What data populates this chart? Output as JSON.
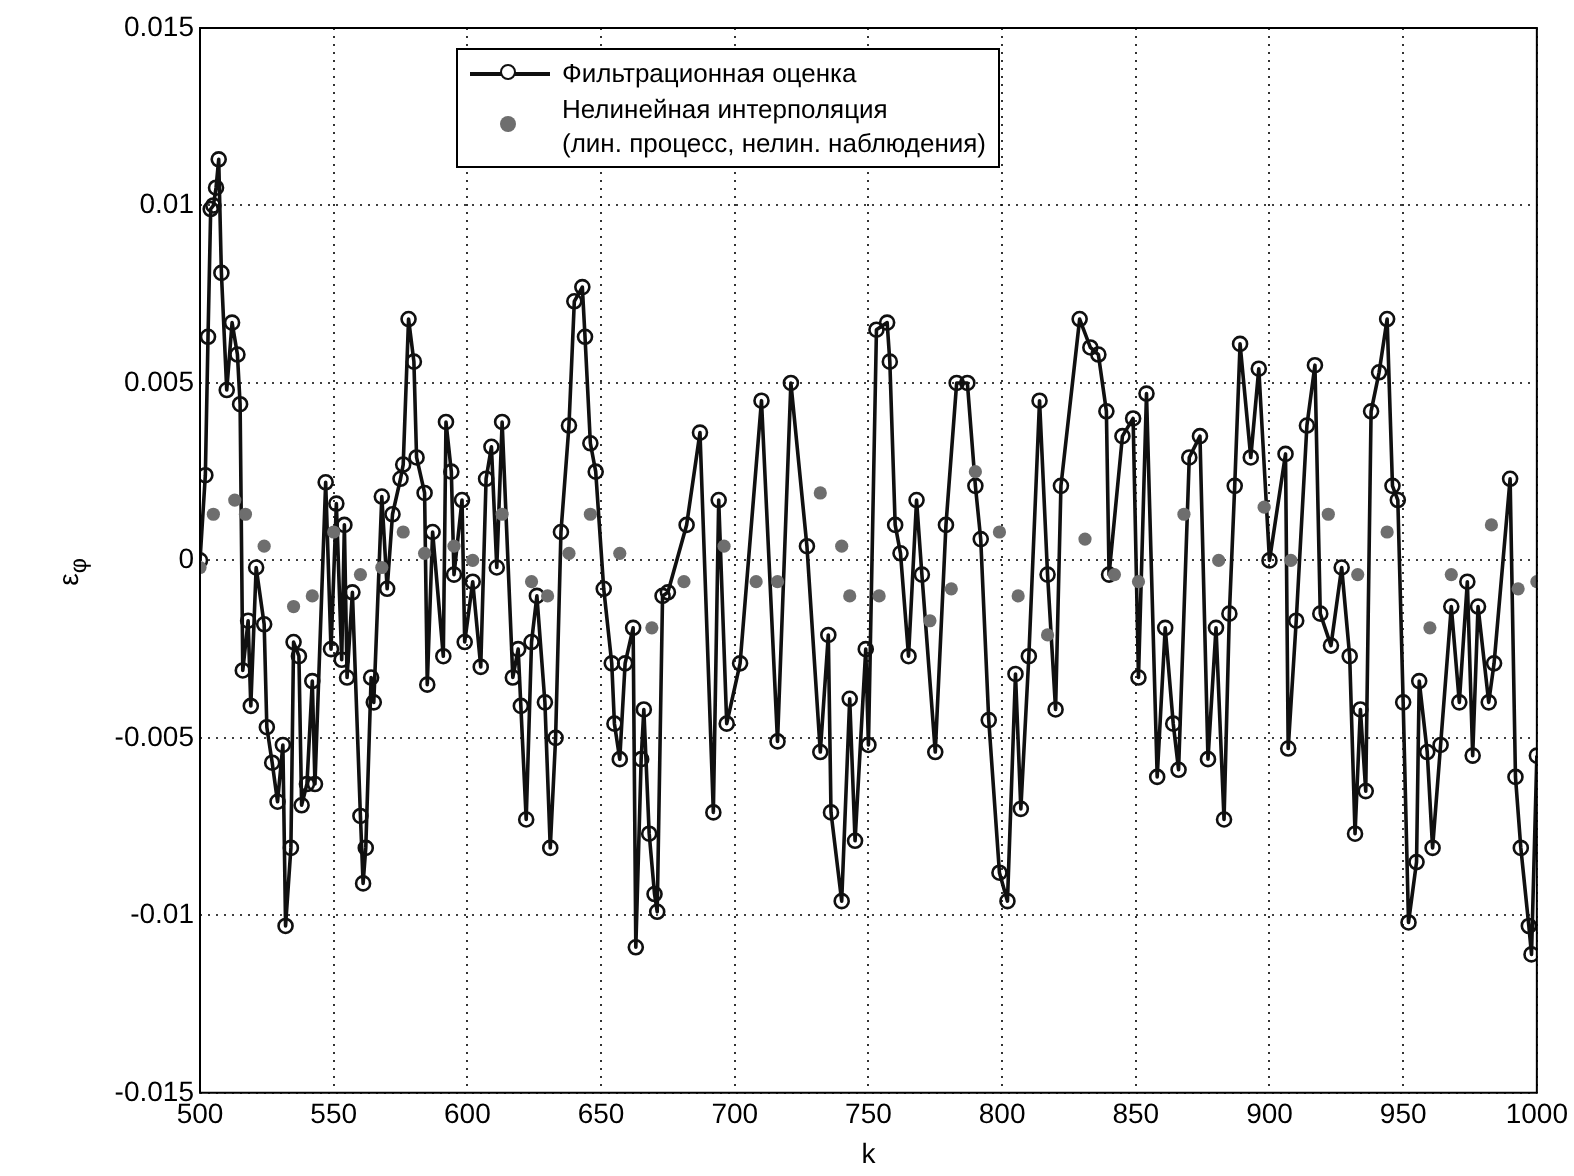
{
  "chart_data": {
    "type": "line",
    "xlabel": "k",
    "ylabel": "ε$_{φ}$",
    "xlim": [
      500,
      1000
    ],
    "xticks": [
      500,
      550,
      600,
      650,
      700,
      750,
      800,
      850,
      900,
      950,
      1000
    ],
    "ylim": [
      -0.015,
      0.015
    ],
    "yticks": [
      -0.015,
      -0.01,
      -0.005,
      0,
      0.005,
      0.01,
      0.015
    ],
    "grid": true,
    "legend": "top",
    "series": [
      {
        "name": "Фильтрационная оценка",
        "marker": "circle",
        "color": "#101010",
        "x": [
          500,
          502,
          503,
          504,
          505,
          506,
          507,
          508,
          510,
          512,
          514,
          515,
          516,
          518,
          519,
          521,
          524,
          525,
          527,
          529,
          531,
          532,
          534,
          535,
          537,
          538,
          540,
          542,
          543,
          547,
          549,
          551,
          553,
          554,
          555,
          557,
          560,
          561,
          562,
          564,
          565,
          568,
          570,
          572,
          575,
          576,
          578,
          580,
          581,
          584,
          585,
          587,
          591,
          592,
          594,
          595,
          598,
          599,
          602,
          605,
          607,
          609,
          611,
          613,
          617,
          619,
          620,
          622,
          624,
          626,
          629,
          631,
          633,
          635,
          638,
          640,
          643,
          644,
          646,
          648,
          651,
          654,
          655,
          657,
          659,
          662,
          663,
          665,
          666,
          668,
          670,
          671,
          673,
          675,
          682,
          687,
          692,
          694,
          697,
          702,
          710,
          716,
          721,
          727,
          732,
          735,
          736,
          740,
          743,
          745,
          749,
          750,
          753,
          757,
          758,
          760,
          762,
          765,
          768,
          770,
          775,
          779,
          783,
          787,
          790,
          792,
          795,
          799,
          802,
          805,
          807,
          810,
          814,
          817,
          820,
          822,
          829,
          833,
          836,
          839,
          840,
          845,
          849,
          851,
          854,
          858,
          861,
          864,
          866,
          870,
          874,
          877,
          880,
          883,
          885,
          887,
          889,
          893,
          896,
          900,
          906,
          907,
          910,
          914,
          917,
          919,
          923,
          927,
          930,
          932,
          934,
          936,
          938,
          941,
          944,
          946,
          948,
          950,
          952,
          955,
          956,
          959,
          961,
          964,
          968,
          971,
          974,
          976,
          978,
          982,
          984,
          990,
          992,
          994,
          997,
          998,
          1000
        ],
        "values": [
          0,
          0.0024,
          0.0063,
          0.0099,
          0.01,
          0.0105,
          0.0113,
          0.0081,
          0.0048,
          0.0067,
          0.0058,
          0.0044,
          -0.0031,
          -0.0017,
          -0.0041,
          -0.0002,
          -0.0018,
          -0.0047,
          -0.0057,
          -0.0068,
          -0.0052,
          -0.0103,
          -0.0081,
          -0.0023,
          -0.0027,
          -0.0069,
          -0.0063,
          -0.0034,
          -0.0063,
          0.0022,
          -0.0025,
          0.0016,
          -0.0028,
          0.001,
          -0.0033,
          -0.0009,
          -0.0072,
          -0.0091,
          -0.0081,
          -0.0033,
          -0.004,
          0.0018,
          -0.0008,
          0.0013,
          0.0023,
          0.0027,
          0.0068,
          0.0056,
          0.0029,
          0.0019,
          -0.0035,
          0.0008,
          -0.0027,
          0.0039,
          0.0025,
          -0.0004,
          0.0017,
          -0.0023,
          -0.0006,
          -0.003,
          0.0023,
          0.0032,
          -0.0002,
          0.0039,
          -0.0033,
          -0.0025,
          -0.0041,
          -0.0073,
          -0.0023,
          -0.001,
          -0.004,
          -0.0081,
          -0.005,
          0.0008,
          0.0038,
          0.0073,
          0.0077,
          0.0063,
          0.0033,
          0.0025,
          -0.0008,
          -0.0029,
          -0.0046,
          -0.0056,
          -0.0029,
          -0.0019,
          -0.0109,
          -0.0056,
          -0.0042,
          -0.0077,
          -0.0094,
          -0.0099,
          -0.001,
          -0.0009,
          0.001,
          0.0036,
          -0.0071,
          0.0017,
          -0.0046,
          -0.0029,
          0.0045,
          -0.0051,
          0.005,
          0.0004,
          -0.0054,
          -0.0021,
          -0.0071,
          -0.0096,
          -0.0039,
          -0.0079,
          -0.0025,
          -0.0052,
          0.0065,
          0.0067,
          0.0056,
          0.001,
          0.0002,
          -0.0027,
          0.0017,
          -0.0004,
          -0.0054,
          0.001,
          0.005,
          0.005,
          0.0021,
          0.0006,
          -0.0045,
          -0.0088,
          -0.0096,
          -0.0032,
          -0.007,
          -0.0027,
          0.0045,
          -0.0004,
          -0.0042,
          0.0021,
          0.0068,
          0.006,
          0.0058,
          0.0042,
          -0.0004,
          0.0035,
          0.004,
          -0.0033,
          0.0047,
          -0.0061,
          -0.0019,
          -0.0046,
          -0.0059,
          0.0029,
          0.0035,
          -0.0056,
          -0.0019,
          -0.0073,
          -0.0015,
          0.0021,
          0.0061,
          0.0029,
          0.0054,
          0,
          0.003,
          -0.0053,
          -0.0017,
          0.0038,
          0.0055,
          -0.0015,
          -0.0024,
          -0.0002,
          -0.0027,
          -0.0077,
          -0.0042,
          -0.0065,
          0.0042,
          0.0053,
          0.0068,
          0.0021,
          0.0017,
          -0.004,
          -0.0102,
          -0.0085,
          -0.0034,
          -0.0054,
          -0.0081,
          -0.0052,
          -0.0013,
          -0.004,
          -0.0006,
          -0.0055,
          -0.0013,
          -0.004,
          -0.0029,
          0.0023,
          -0.0061,
          -0.0081,
          -0.0103,
          -0.0111,
          -0.0055
        ]
      },
      {
        "name": "Нелинейная интерполяция\n(лин. процесс, нелин. наблюдения)",
        "type": "scatter",
        "marker": "circle",
        "color": "#6e6e6e",
        "x": [
          500,
          505,
          513,
          517,
          524,
          535,
          542,
          550,
          560,
          568,
          576,
          584,
          595,
          602,
          613,
          624,
          630,
          638,
          646,
          657,
          669,
          681,
          696,
          708,
          716,
          732,
          740,
          743,
          754,
          773,
          781,
          790,
          799,
          806,
          817,
          831,
          842,
          851,
          868,
          881,
          898,
          908,
          922,
          933,
          944,
          960,
          968,
          983,
          993,
          1000
        ],
        "values": [
          -0.0002,
          0.0013,
          0.0017,
          0.0013,
          0.0004,
          -0.0013,
          -0.001,
          0.0008,
          -0.0004,
          -0.0002,
          0.0008,
          0.0002,
          0.0004,
          0,
          0.0013,
          -0.0006,
          -0.001,
          0.0002,
          0.0013,
          0.0002,
          -0.0019,
          -0.0006,
          0.0004,
          -0.0006,
          -0.0006,
          0.0019,
          0.0004,
          -0.001,
          -0.001,
          -0.0017,
          -0.0008,
          0.0025,
          0.0008,
          -0.001,
          -0.0021,
          0.0006,
          -0.0004,
          -0.0006,
          0.0013,
          0,
          0.0015,
          0,
          0.0013,
          -0.0004,
          0.0008,
          -0.0019,
          -0.0004,
          0.001,
          -0.0008,
          -0.0006
        ]
      }
    ]
  }
}
